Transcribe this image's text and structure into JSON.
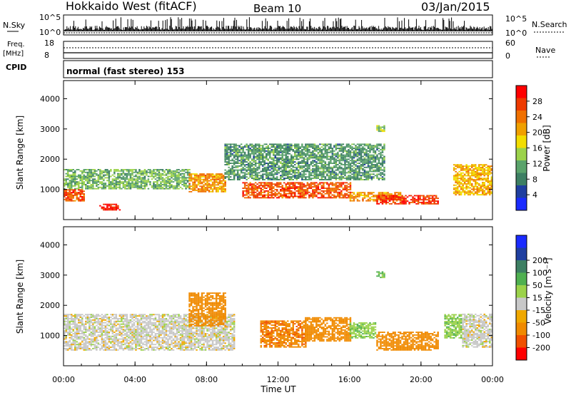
{
  "header": {
    "station": "Hokkaido West (fitACF)",
    "beam": "Beam 10",
    "date": "03/Jan/2015"
  },
  "top_strip": {
    "nsky_label": "N.Sky",
    "nsky_ticks": [
      "10^5",
      "10^0"
    ],
    "nsearch_label": "N.Search",
    "nsearch_ticks": [
      "10^5",
      "10^0"
    ],
    "freq_label": "Freq.",
    "freq_unit": "[MHz]",
    "freq_ticks": [
      "18",
      "8"
    ],
    "nave_label": "Nave",
    "nave_ticks": [
      "60",
      "0"
    ],
    "cpid_label": "CPID",
    "cpid_value": "normal (fast stereo) 153"
  },
  "colors": {
    "power_scale": [
      "#1a2bff",
      "#1f3fa0",
      "#3d7f63",
      "#5aa36b",
      "#9bd24a",
      "#f2dd00",
      "#f0a000",
      "#f07000",
      "#ee3a00",
      "#ff0000"
    ],
    "velocity_scale": [
      "#ff0000",
      "#f05000",
      "#f08a00",
      "#f0a800",
      "#c8c8c8",
      "#9bd24a",
      "#4fb050",
      "#3d7f63",
      "#1f3fa0",
      "#1a2bff"
    ],
    "ground_scatter": "#c8c8c8"
  },
  "chart_data": [
    {
      "type": "heatmap",
      "panel": "power",
      "ylabel": "Slant Range [km]",
      "xlabel": "",
      "x_ticks": [
        "00:00",
        "04:00",
        "08:00",
        "12:00",
        "16:00",
        "20:00",
        "00:00"
      ],
      "x_range_hours": [
        0,
        24
      ],
      "ylim": [
        0,
        4600
      ],
      "y_ticks": [
        1000,
        2000,
        3000,
        4000
      ],
      "colorbar": {
        "label": "Power [dB]",
        "ticks": [
          4,
          8,
          12,
          16,
          20,
          24,
          28
        ],
        "range": [
          0,
          32
        ]
      },
      "echo_bands": [
        {
          "start_hour": 0.0,
          "end_hour": 1.2,
          "min_range_km": 600,
          "max_range_km": 1000,
          "value": 26
        },
        {
          "start_hour": 0.0,
          "end_hour": 7.0,
          "min_range_km": 1000,
          "max_range_km": 1650,
          "value": 12
        },
        {
          "start_hour": 2.0,
          "end_hour": 3.2,
          "min_range_km": 300,
          "max_range_km": 500,
          "value": 30
        },
        {
          "start_hour": 7.0,
          "end_hour": 9.0,
          "min_range_km": 900,
          "max_range_km": 1500,
          "value": 22
        },
        {
          "start_hour": 9.0,
          "end_hour": 18.0,
          "min_range_km": 1300,
          "max_range_km": 2500,
          "value": 10
        },
        {
          "start_hour": 10.0,
          "end_hour": 16.0,
          "min_range_km": 700,
          "max_range_km": 1200,
          "value": 26
        },
        {
          "start_hour": 16.0,
          "end_hour": 19.0,
          "min_range_km": 600,
          "max_range_km": 900,
          "value": 22
        },
        {
          "start_hour": 17.5,
          "end_hour": 21.0,
          "min_range_km": 500,
          "max_range_km": 800,
          "value": 28
        },
        {
          "start_hour": 21.8,
          "end_hour": 24.0,
          "min_range_km": 800,
          "max_range_km": 1800,
          "value": 20
        },
        {
          "start_hour": 17.5,
          "end_hour": 18.0,
          "min_range_km": 2900,
          "max_range_km": 3100,
          "value": 14
        }
      ]
    },
    {
      "type": "heatmap",
      "panel": "velocity",
      "ylabel": "Slant Range [km]",
      "xlabel": "Time UT",
      "x_ticks": [
        "00:00",
        "04:00",
        "08:00",
        "12:00",
        "16:00",
        "20:00",
        "00:00"
      ],
      "x_range_hours": [
        0,
        24
      ],
      "ylim": [
        0,
        4600
      ],
      "y_ticks": [
        1000,
        2000,
        3000,
        4000
      ],
      "colorbar": {
        "label": "Velocity [m s⁻¹]",
        "ticks": [
          200,
          100,
          50,
          15,
          -15,
          -50,
          -100,
          -200
        ]
      },
      "echo_bands": [
        {
          "start_hour": 0.0,
          "end_hour": 9.5,
          "min_range_km": 500,
          "max_range_km": 1700,
          "value": 0
        },
        {
          "start_hour": 7.0,
          "end_hour": 9.0,
          "min_range_km": 1300,
          "max_range_km": 2400,
          "value": -70
        },
        {
          "start_hour": 11.0,
          "end_hour": 13.5,
          "min_range_km": 600,
          "max_range_km": 1500,
          "value": -90
        },
        {
          "start_hour": 13.5,
          "end_hour": 16.0,
          "min_range_km": 800,
          "max_range_km": 1600,
          "value": -70
        },
        {
          "start_hour": 16.0,
          "end_hour": 17.5,
          "min_range_km": 900,
          "max_range_km": 1400,
          "value": 40
        },
        {
          "start_hour": 17.5,
          "end_hour": 21.0,
          "min_range_km": 500,
          "max_range_km": 1100,
          "value": -80
        },
        {
          "start_hour": 21.3,
          "end_hour": 22.3,
          "min_range_km": 900,
          "max_range_km": 1700,
          "value": 40
        },
        {
          "start_hour": 22.3,
          "end_hour": 24.0,
          "min_range_km": 600,
          "max_range_km": 1700,
          "value": 0
        },
        {
          "start_hour": 17.5,
          "end_hour": 18.0,
          "min_range_km": 2900,
          "max_range_km": 3100,
          "value": 60
        }
      ]
    }
  ]
}
